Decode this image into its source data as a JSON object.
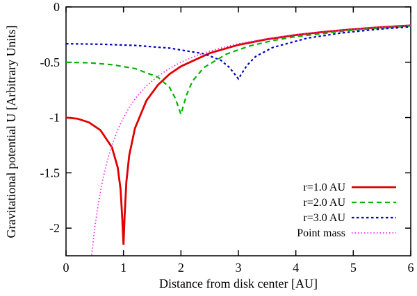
{
  "chart_data": {
    "type": "line",
    "title": "",
    "xlabel": "Distance from disk center [AU]",
    "ylabel": "Gravitational potential U [Arbitrary Units]",
    "xlim": [
      0,
      6
    ],
    "ylim": [
      -2.25,
      0
    ],
    "xticks": [
      0,
      1,
      2,
      3,
      4,
      5,
      6
    ],
    "yticks": [
      0,
      -0.5,
      -1,
      -1.5,
      -2
    ],
    "ytick_labels": [
      "0",
      "-0.5",
      "-1",
      "-1.5",
      "-2"
    ],
    "grid": false,
    "background": "#ffffff",
    "axis_color": "#000000",
    "legend_position": "bottom-right-inside",
    "series": [
      {
        "name": "r=1.0 AU",
        "color": "#e00000",
        "style": "solid",
        "dash": "",
        "width": 2.8,
        "points": [
          [
            0,
            -1.0
          ],
          [
            0.2,
            -1.01
          ],
          [
            0.4,
            -1.044
          ],
          [
            0.6,
            -1.115
          ],
          [
            0.8,
            -1.27
          ],
          [
            0.9,
            -1.452
          ],
          [
            0.95,
            -1.649
          ],
          [
            0.98,
            -1.923
          ],
          [
            1.0,
            -2.15
          ],
          [
            1.02,
            -1.891
          ],
          [
            1.05,
            -1.584
          ],
          [
            1.1,
            -1.344
          ],
          [
            1.2,
            -1.097
          ],
          [
            1.4,
            -0.847
          ],
          [
            1.6,
            -0.705
          ],
          [
            1.8,
            -0.608
          ],
          [
            2.0,
            -0.537
          ],
          [
            2.5,
            -0.418
          ],
          [
            3.0,
            -0.343
          ],
          [
            3.5,
            -0.292
          ],
          [
            4.0,
            -0.254
          ],
          [
            4.5,
            -0.225
          ],
          [
            5.0,
            -0.202
          ],
          [
            5.5,
            -0.183
          ],
          [
            6.0,
            -0.168
          ]
        ]
      },
      {
        "name": "r=2.0 AU",
        "color": "#00b400",
        "style": "dashed",
        "dash": "7,5",
        "width": 2.2,
        "points": [
          [
            0,
            -0.5
          ],
          [
            0.4,
            -0.505
          ],
          [
            0.8,
            -0.522
          ],
          [
            1.2,
            -0.557
          ],
          [
            1.6,
            -0.635
          ],
          [
            1.8,
            -0.726
          ],
          [
            1.9,
            -0.824
          ],
          [
            2.0,
            -0.97
          ],
          [
            2.1,
            -0.792
          ],
          [
            2.2,
            -0.672
          ],
          [
            2.4,
            -0.548
          ],
          [
            2.8,
            -0.424
          ],
          [
            3.2,
            -0.352
          ],
          [
            3.6,
            -0.304
          ],
          [
            4.0,
            -0.268
          ],
          [
            4.4,
            -0.245
          ],
          [
            5.0,
            -0.209
          ],
          [
            5.6,
            -0.187
          ],
          [
            6.0,
            -0.172
          ]
        ]
      },
      {
        "name": "r=3.0 AU",
        "color": "#0000c0",
        "style": "short-dash",
        "dash": "3.5,3.5",
        "width": 2.2,
        "points": [
          [
            0,
            -0.333
          ],
          [
            0.6,
            -0.337
          ],
          [
            1.2,
            -0.348
          ],
          [
            1.8,
            -0.372
          ],
          [
            2.4,
            -0.423
          ],
          [
            2.7,
            -0.484
          ],
          [
            2.85,
            -0.55
          ],
          [
            3.0,
            -0.65
          ],
          [
            3.15,
            -0.528
          ],
          [
            3.3,
            -0.448
          ],
          [
            3.6,
            -0.366
          ],
          [
            4.2,
            -0.282
          ],
          [
            4.8,
            -0.235
          ],
          [
            5.4,
            -0.203
          ],
          [
            6.0,
            -0.179
          ]
        ]
      },
      {
        "name": "Point mass",
        "color": "#ee22ee",
        "style": "dotted",
        "dash": "1.5,3",
        "width": 1.7,
        "points": [
          [
            0.42,
            -2.381
          ],
          [
            0.45,
            -2.222
          ],
          [
            0.5,
            -2.0
          ],
          [
            0.55,
            -1.818
          ],
          [
            0.6,
            -1.667
          ],
          [
            0.65,
            -1.538
          ],
          [
            0.7,
            -1.429
          ],
          [
            0.75,
            -1.333
          ],
          [
            0.8,
            -1.25
          ],
          [
            0.9,
            -1.111
          ],
          [
            1.0,
            -1.0
          ],
          [
            1.1,
            -0.909
          ],
          [
            1.2,
            -0.833
          ],
          [
            1.4,
            -0.714
          ],
          [
            1.6,
            -0.625
          ],
          [
            1.8,
            -0.556
          ],
          [
            2.0,
            -0.5
          ],
          [
            2.25,
            -0.444
          ],
          [
            2.5,
            -0.4
          ],
          [
            2.75,
            -0.364
          ],
          [
            3.0,
            -0.333
          ],
          [
            3.5,
            -0.286
          ],
          [
            4.0,
            -0.25
          ],
          [
            4.5,
            -0.222
          ],
          [
            5.0,
            -0.2
          ],
          [
            5.5,
            -0.182
          ],
          [
            6.0,
            -0.167
          ]
        ]
      }
    ]
  }
}
